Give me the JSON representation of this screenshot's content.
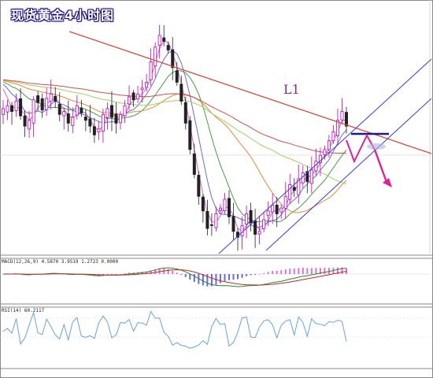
{
  "title": "现货黄金4小时图",
  "chart_data": [
    {
      "type": "candlestick",
      "title": "现货黄金4小时图",
      "annotations": [
        "L1"
      ],
      "overlays": [
        "moving averages (several)",
        "trend line L1 (red, descending)",
        "ascending channel (blue, two lines)",
        "resistance level (navy horizontal)",
        "projected path (magenta zig-zag with down arrow)"
      ],
      "grid": false,
      "colors": {
        "up": "#c000c0",
        "down": "#222222",
        "trend": "#d44b3a",
        "channel": "#3a3ad8",
        "projection": "#e0209a",
        "resistance": "#1a1a8a"
      },
      "candles_close_trend": [
        90,
        92,
        88,
        95,
        85,
        78,
        82,
        96,
        94,
        89,
        97,
        100,
        95,
        86,
        88,
        80,
        84,
        92,
        87,
        82,
        78,
        72,
        76,
        86,
        90,
        84,
        80,
        86,
        92,
        98,
        96,
        100,
        104,
        108,
        122,
        132,
        140,
        136,
        130,
        118,
        108,
        95,
        80,
        62,
        45,
        30,
        20,
        8,
        10,
        18,
        22,
        28,
        16,
        6,
        2,
        10,
        18,
        12,
        4,
        6,
        14,
        20,
        24,
        18,
        22,
        30,
        38,
        34,
        42,
        46,
        40,
        48,
        54,
        58,
        62,
        68,
        74,
        82,
        88,
        78
      ]
    },
    {
      "type": "line+bar",
      "title": "MACD(12,26,9)",
      "legend_text": "MACD(12,26,9) 4.5870 3.9519 1.2723 0.0000"
    },
    {
      "type": "line",
      "title": "RSI(14)",
      "legend_text": "RSI(14) 60.2117"
    }
  ]
}
